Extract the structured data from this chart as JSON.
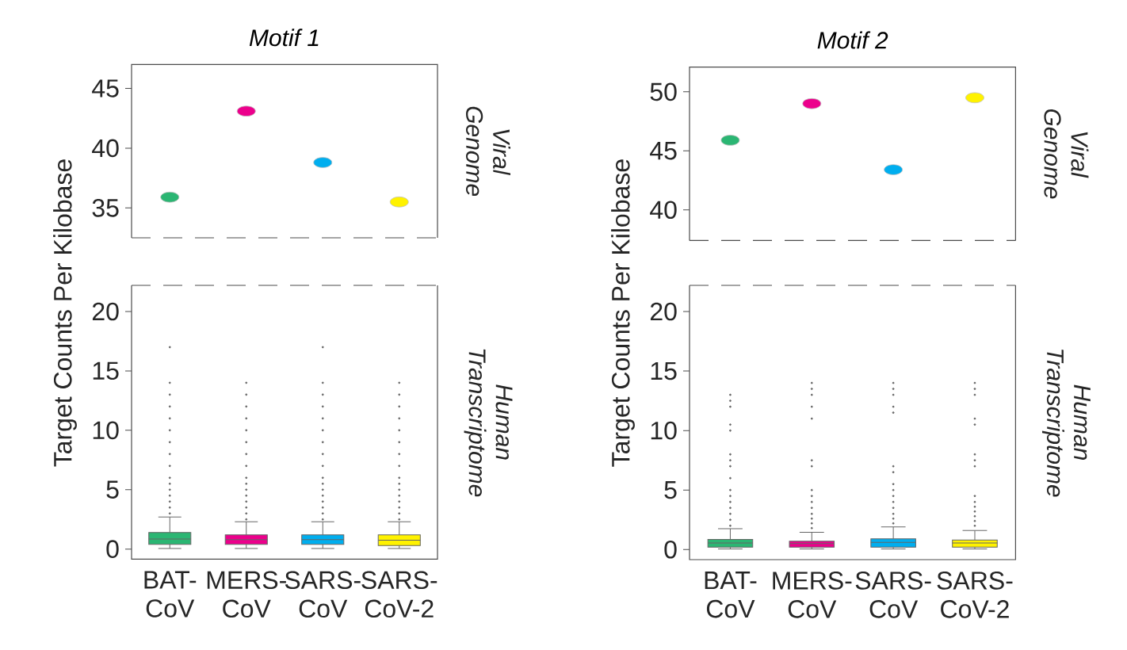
{
  "chart_data": [
    {
      "type": "scatter",
      "title": "Motif 1",
      "categories": [
        null,
        null,
        null,
        null
      ],
      "values": [
        35.9,
        43.1,
        38.8,
        35.5
      ],
      "colors": [
        "#2bb673",
        "#ec008c",
        "#00aeef",
        "#fff200"
      ],
      "ylim": [
        32.5,
        47
      ],
      "yticks": [
        35,
        40,
        45
      ],
      "tick_labels": "y",
      "marker": "circle",
      "annotations": [
        "Viral Genome"
      ]
    },
    {
      "type": "scatter",
      "title": "Motif 2",
      "categories": [
        null,
        null,
        null,
        null
      ],
      "values": [
        45.9,
        49.0,
        43.4,
        49.5
      ],
      "colors": [
        "#2bb673",
        "#ec008c",
        "#00aeef",
        "#fff200"
      ],
      "ylim": [
        37.4,
        52.1
      ],
      "yticks": [
        40,
        45,
        50
      ],
      "tick_labels": "y",
      "marker": "circle",
      "annotations": [
        "Viral Genome"
      ]
    },
    {
      "type": "box",
      "ylabel": "Target Counts Per Kilobase",
      "categories": [
        "BAT-CoV",
        "MERS-CoV",
        "SARS-CoV",
        "SARS-CoV-2"
      ],
      "colors": [
        "#2bb673",
        "#ec008c",
        "#00aeef",
        "#fff200"
      ],
      "ylim": [
        -0.85,
        22.2
      ],
      "yticks": [
        0,
        5,
        10,
        15,
        20
      ],
      "annotations": [
        "Human Transcriptome"
      ],
      "boxes": [
        {
          "low": 0.05,
          "q1": 0.4,
          "median": 0.85,
          "q3": 1.4,
          "high": 2.7,
          "outliers": [
            3,
            3.5,
            4,
            4.5,
            5,
            5.5,
            6,
            7,
            8,
            9,
            10,
            11,
            12,
            13,
            14,
            17
          ]
        },
        {
          "low": 0.05,
          "q1": 0.4,
          "median": 0.8,
          "q3": 1.2,
          "high": 2.3,
          "outliers": [
            2.5,
            3,
            3.5,
            4,
            4.5,
            5,
            5.5,
            6,
            7,
            8,
            9,
            10,
            11,
            12,
            13,
            14
          ]
        },
        {
          "low": 0.05,
          "q1": 0.4,
          "median": 0.8,
          "q3": 1.2,
          "high": 2.3,
          "outliers": [
            2.5,
            3,
            3.5,
            4,
            4.5,
            5,
            5.5,
            6,
            7,
            8,
            9,
            10,
            11,
            12,
            13,
            14,
            17
          ]
        },
        {
          "low": 0.05,
          "q1": 0.3,
          "median": 0.75,
          "q3": 1.2,
          "high": 2.3,
          "outliers": [
            2.5,
            3,
            3.5,
            4,
            4.5,
            5,
            5.5,
            6,
            7,
            8,
            9,
            10,
            11,
            12,
            13,
            14
          ]
        }
      ]
    },
    {
      "type": "box",
      "ylabel": "Target Counts Per Kilobase",
      "categories": [
        "BAT-CoV",
        "MERS-CoV",
        "SARS-CoV",
        "SARS-CoV-2"
      ],
      "colors": [
        "#2bb673",
        "#ec008c",
        "#00aeef",
        "#fff200"
      ],
      "ylim": [
        -0.85,
        22.2
      ],
      "yticks": [
        0,
        5,
        10,
        15,
        20
      ],
      "annotations": [
        "Human Transcriptome"
      ],
      "boxes": [
        {
          "low": 0.05,
          "q1": 0.2,
          "median": 0.55,
          "q3": 0.85,
          "high": 1.75,
          "outliers": [
            2,
            2.5,
            3,
            3.5,
            4,
            4.5,
            5,
            6,
            7,
            7.5,
            8,
            10,
            10.5,
            12,
            12.5,
            13
          ]
        },
        {
          "low": 0.05,
          "q1": 0.2,
          "median": 0.5,
          "q3": 0.7,
          "high": 1.45,
          "outliers": [
            1.8,
            2.2,
            2.6,
            3,
            3.5,
            4,
            4.5,
            5,
            7,
            7.5,
            11,
            12,
            13,
            13.5,
            14
          ]
        },
        {
          "low": 0.05,
          "q1": 0.2,
          "median": 0.6,
          "q3": 0.9,
          "high": 1.9,
          "outliers": [
            2.2,
            2.6,
            3,
            3.5,
            4,
            4.5,
            5,
            5.5,
            6.5,
            7,
            11.5,
            12,
            13,
            13.5,
            14
          ]
        },
        {
          "low": 0.05,
          "q1": 0.2,
          "median": 0.55,
          "q3": 0.8,
          "high": 1.6,
          "outliers": [
            2,
            2.4,
            2.8,
            3.2,
            3.6,
            4,
            4.5,
            7,
            7.5,
            8,
            10.5,
            11,
            13,
            13.5,
            14
          ]
        }
      ]
    }
  ]
}
